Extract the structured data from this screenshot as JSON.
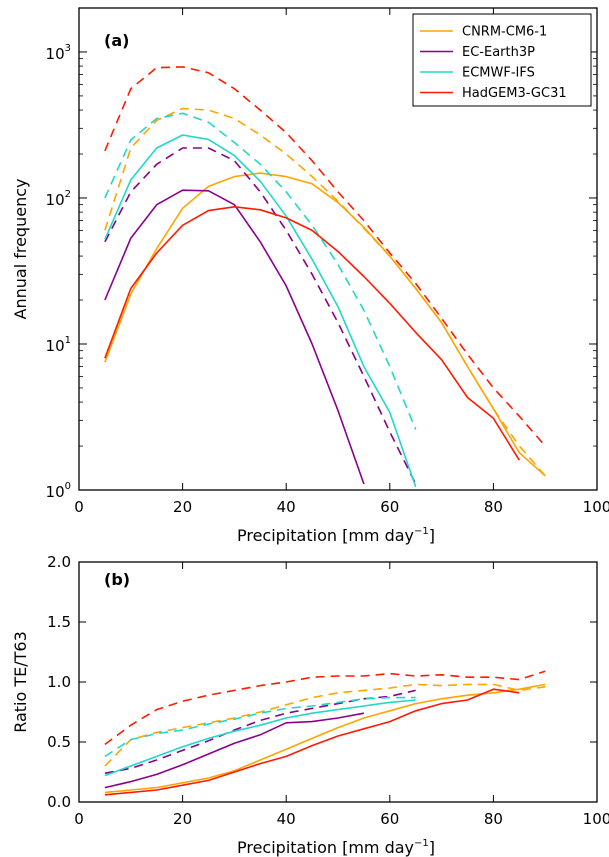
{
  "colors": {
    "CNRM-CM6-1": "#ffa500",
    "EC-Earth3P": "#8b008b",
    "ECMWF-IFS": "#20d8c8",
    "HadGEM3-GC31": "#ff1a00"
  },
  "chart_data": [
    {
      "type": "line",
      "panel_label": "(a)",
      "xlabel": "Precipitation [mm day",
      "xlabel_sup": "−1",
      "xlabel_close": "]",
      "ylabel": "Annual frequency",
      "xlim": [
        0,
        100
      ],
      "ylim": [
        1,
        2000
      ],
      "yscale": "log",
      "x_ticks": [
        "0",
        "20",
        "40",
        "60",
        "80",
        "100"
      ],
      "y_ticks": [
        {
          "value": 1,
          "base": "10",
          "exp": "0"
        },
        {
          "value": 10,
          "base": "10",
          "exp": "1"
        },
        {
          "value": 100,
          "base": "10",
          "exp": "2"
        },
        {
          "value": 1000,
          "base": "10",
          "exp": "3"
        }
      ],
      "legend": {
        "location": "top-right",
        "entries": [
          "CNRM-CM6-1",
          "EC-Earth3P",
          "ECMWF-IFS",
          "HadGEM3-GC31"
        ]
      },
      "series": [
        {
          "name": "CNRM-CM6-1",
          "style": "solid",
          "x": [
            5,
            10,
            15,
            20,
            25,
            30,
            35,
            40,
            45,
            50,
            55,
            60,
            65,
            70,
            75,
            80,
            85,
            90
          ],
          "y": [
            7.5,
            22,
            45,
            85,
            120,
            140,
            148,
            140,
            125,
            93,
            63,
            40,
            24,
            14,
            7,
            3.6,
            1.8,
            1.25
          ]
        },
        {
          "name": "CNRM-CM6-1",
          "style": "dashed",
          "x": [
            5,
            10,
            15,
            20,
            25,
            30,
            35,
            40,
            45,
            50,
            55,
            60,
            65,
            70,
            75,
            80,
            85,
            90
          ],
          "y": [
            60,
            220,
            340,
            410,
            400,
            350,
            270,
            200,
            140,
            95,
            62,
            40,
            24,
            14,
            7,
            3.6,
            2,
            1.25
          ]
        },
        {
          "name": "EC-Earth3P",
          "style": "solid",
          "x": [
            5,
            10,
            15,
            20,
            25,
            30,
            35,
            40,
            45,
            50,
            55
          ],
          "y": [
            20,
            53,
            90,
            113,
            112,
            90,
            50,
            25,
            10,
            3.5,
            1.1
          ]
        },
        {
          "name": "EC-Earth3P",
          "style": "dashed",
          "x": [
            5,
            10,
            15,
            20,
            25,
            30,
            35,
            40,
            45,
            50,
            55,
            60,
            65
          ],
          "y": [
            50,
            110,
            170,
            220,
            220,
            180,
            110,
            60,
            30,
            14,
            6,
            2.5,
            1.1
          ]
        },
        {
          "name": "ECMWF-IFS",
          "style": "solid",
          "x": [
            5,
            10,
            15,
            20,
            25,
            30,
            35,
            40,
            45,
            50,
            55,
            60,
            65
          ],
          "y": [
            52,
            133,
            220,
            270,
            252,
            195,
            130,
            75,
            38,
            18,
            7,
            3.4,
            1.05
          ]
        },
        {
          "name": "ECMWF-IFS",
          "style": "dashed",
          "x": [
            5,
            10,
            15,
            20,
            25,
            30,
            35,
            40,
            45,
            50,
            55,
            60,
            65
          ],
          "y": [
            100,
            250,
            350,
            380,
            330,
            240,
            170,
            110,
            65,
            35,
            17,
            7,
            2.6
          ]
        },
        {
          "name": "HadGEM3-GC31",
          "style": "solid",
          "x": [
            5,
            10,
            15,
            20,
            25,
            30,
            35,
            40,
            45,
            50,
            55,
            60,
            65,
            70,
            75,
            80,
            85
          ],
          "y": [
            8,
            24,
            42,
            65,
            82,
            87,
            83,
            73,
            60,
            43,
            29,
            19,
            12,
            7.8,
            4.3,
            3.1,
            1.6
          ]
        },
        {
          "name": "HadGEM3-GC31",
          "style": "dashed",
          "x": [
            5,
            10,
            15,
            20,
            25,
            30,
            35,
            40,
            45,
            50,
            55,
            60,
            65,
            70,
            75,
            80,
            85,
            90
          ],
          "y": [
            210,
            560,
            780,
            790,
            720,
            560,
            400,
            280,
            180,
            110,
            70,
            42,
            26,
            15,
            8.5,
            5,
            3.2,
            2
          ]
        }
      ]
    },
    {
      "type": "line",
      "panel_label": "(b)",
      "xlabel": "Precipitation [mm day",
      "xlabel_sup": "−1",
      "xlabel_close": "]",
      "ylabel": "Ratio TE/T63",
      "xlim": [
        0,
        100
      ],
      "ylim": [
        0,
        2
      ],
      "yscale": "linear",
      "x_ticks": [
        "0",
        "20",
        "40",
        "60",
        "80",
        "100"
      ],
      "y_ticks": [
        "0.0",
        "0.5",
        "1.0",
        "1.5",
        "2.0"
      ],
      "series": [
        {
          "name": "CNRM-CM6-1",
          "style": "solid",
          "x": [
            5,
            10,
            15,
            20,
            25,
            30,
            35,
            40,
            45,
            50,
            55,
            60,
            65,
            70,
            75,
            80,
            85,
            90
          ],
          "y": [
            0.08,
            0.1,
            0.12,
            0.16,
            0.2,
            0.26,
            0.35,
            0.44,
            0.53,
            0.62,
            0.7,
            0.76,
            0.82,
            0.86,
            0.89,
            0.91,
            0.94,
            0.98
          ]
        },
        {
          "name": "CNRM-CM6-1",
          "style": "dashed",
          "x": [
            5,
            10,
            15,
            20,
            25,
            30,
            35,
            40,
            45,
            50,
            55,
            60,
            65,
            70,
            75,
            80,
            85,
            90
          ],
          "y": [
            0.3,
            0.52,
            0.58,
            0.62,
            0.66,
            0.7,
            0.75,
            0.81,
            0.87,
            0.91,
            0.93,
            0.95,
            0.98,
            0.97,
            0.98,
            0.98,
            0.93,
            0.96
          ]
        },
        {
          "name": "EC-Earth3P",
          "style": "solid",
          "x": [
            5,
            10,
            15,
            20,
            25,
            30,
            35,
            40,
            45,
            50,
            55
          ],
          "y": [
            0.12,
            0.17,
            0.23,
            0.31,
            0.4,
            0.49,
            0.56,
            0.66,
            0.67,
            0.7,
            0.74
          ]
        },
        {
          "name": "EC-Earth3P",
          "style": "dashed",
          "x": [
            5,
            10,
            15,
            20,
            25,
            30,
            35,
            40,
            45,
            50,
            55,
            60,
            65
          ],
          "y": [
            0.24,
            0.28,
            0.35,
            0.43,
            0.51,
            0.6,
            0.68,
            0.74,
            0.78,
            0.82,
            0.86,
            0.88,
            0.93
          ]
        },
        {
          "name": "ECMWF-IFS",
          "style": "solid",
          "x": [
            5,
            10,
            15,
            20,
            25,
            30,
            35,
            40,
            45,
            50,
            55,
            60,
            65
          ],
          "y": [
            0.22,
            0.3,
            0.38,
            0.46,
            0.53,
            0.59,
            0.64,
            0.7,
            0.74,
            0.77,
            0.8,
            0.83,
            0.85
          ]
        },
        {
          "name": "ECMWF-IFS",
          "style": "dashed",
          "x": [
            5,
            10,
            15,
            20,
            25,
            30,
            35,
            40,
            45,
            50,
            55,
            60,
            65
          ],
          "y": [
            0.38,
            0.52,
            0.57,
            0.6,
            0.65,
            0.69,
            0.74,
            0.78,
            0.8,
            0.83,
            0.86,
            0.87,
            0.87
          ]
        },
        {
          "name": "HadGEM3-GC31",
          "style": "solid",
          "x": [
            5,
            10,
            15,
            20,
            25,
            30,
            35,
            40,
            45,
            50,
            55,
            60,
            65,
            70,
            75,
            80,
            85
          ],
          "y": [
            0.06,
            0.08,
            0.1,
            0.14,
            0.18,
            0.25,
            0.32,
            0.38,
            0.47,
            0.55,
            0.61,
            0.67,
            0.76,
            0.82,
            0.85,
            0.94,
            0.91
          ]
        },
        {
          "name": "HadGEM3-GC31",
          "style": "dashed",
          "x": [
            5,
            10,
            15,
            20,
            25,
            30,
            35,
            40,
            45,
            50,
            55,
            60,
            65,
            70,
            75,
            80,
            85,
            90
          ],
          "y": [
            0.48,
            0.64,
            0.77,
            0.84,
            0.89,
            0.93,
            0.97,
            1.0,
            1.04,
            1.05,
            1.05,
            1.07,
            1.05,
            1.06,
            1.04,
            1.04,
            1.02,
            1.09
          ]
        }
      ]
    }
  ]
}
